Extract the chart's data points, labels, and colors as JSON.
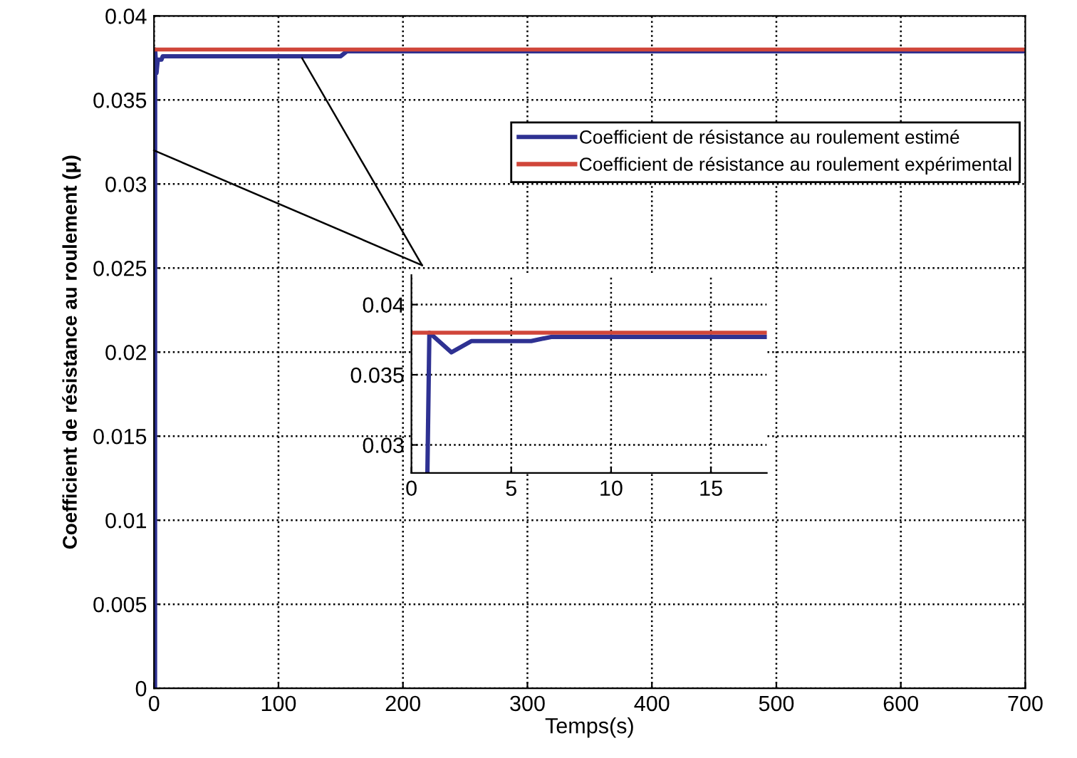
{
  "chart_data": [
    {
      "type": "line",
      "xlabel": "Temps(s)",
      "ylabel": "Coefficient de résistance au roulement (μ)",
      "series": [
        {
          "name": "Coefficient de résistance au roulement estimé",
          "color": "#2e3192",
          "x": [
            0,
            0.8,
            0.9,
            2,
            3,
            6,
            7,
            150,
            155,
            700
          ],
          "values": [
            0,
            0,
            0.038,
            0.0366,
            0.0374,
            0.0374,
            0.0376,
            0.0376,
            0.0379,
            0.0379
          ]
        },
        {
          "name": "Coefficient de résistance au roulement expérimental",
          "color": "#d0463a",
          "x": [
            0,
            700
          ],
          "values": [
            0.038,
            0.038
          ]
        }
      ],
      "xlim": [
        0,
        700
      ],
      "ylim": [
        0,
        0.04
      ],
      "xticks": [
        0,
        100,
        200,
        300,
        400,
        500,
        600,
        700
      ],
      "yticks": [
        0,
        0.005,
        0.01,
        0.015,
        0.02,
        0.025,
        0.03,
        0.035,
        0.04
      ],
      "grid": true,
      "legend": "top right",
      "line_style": "solid",
      "marker": "none"
    },
    {
      "type": "line",
      "series": [
        {
          "color": "#2e3192",
          "x": [
            0.8,
            0.9,
            2,
            3,
            6,
            7,
            17.8
          ],
          "values": [
            0.028,
            0.038,
            0.0366,
            0.0374,
            0.0374,
            0.0377,
            0.0377
          ]
        },
        {
          "color": "#d0463a",
          "x": [
            0,
            17.8
          ],
          "values": [
            0.038,
            0.038
          ]
        }
      ],
      "xlim": [
        0,
        17.8
      ],
      "ylim": [
        0.028,
        0.0421
      ],
      "xticks": [
        0,
        5,
        10,
        15
      ],
      "yticks": [
        0.03,
        0.035,
        0.04
      ],
      "grid": true,
      "line_style": "solid",
      "marker": "none"
    }
  ]
}
